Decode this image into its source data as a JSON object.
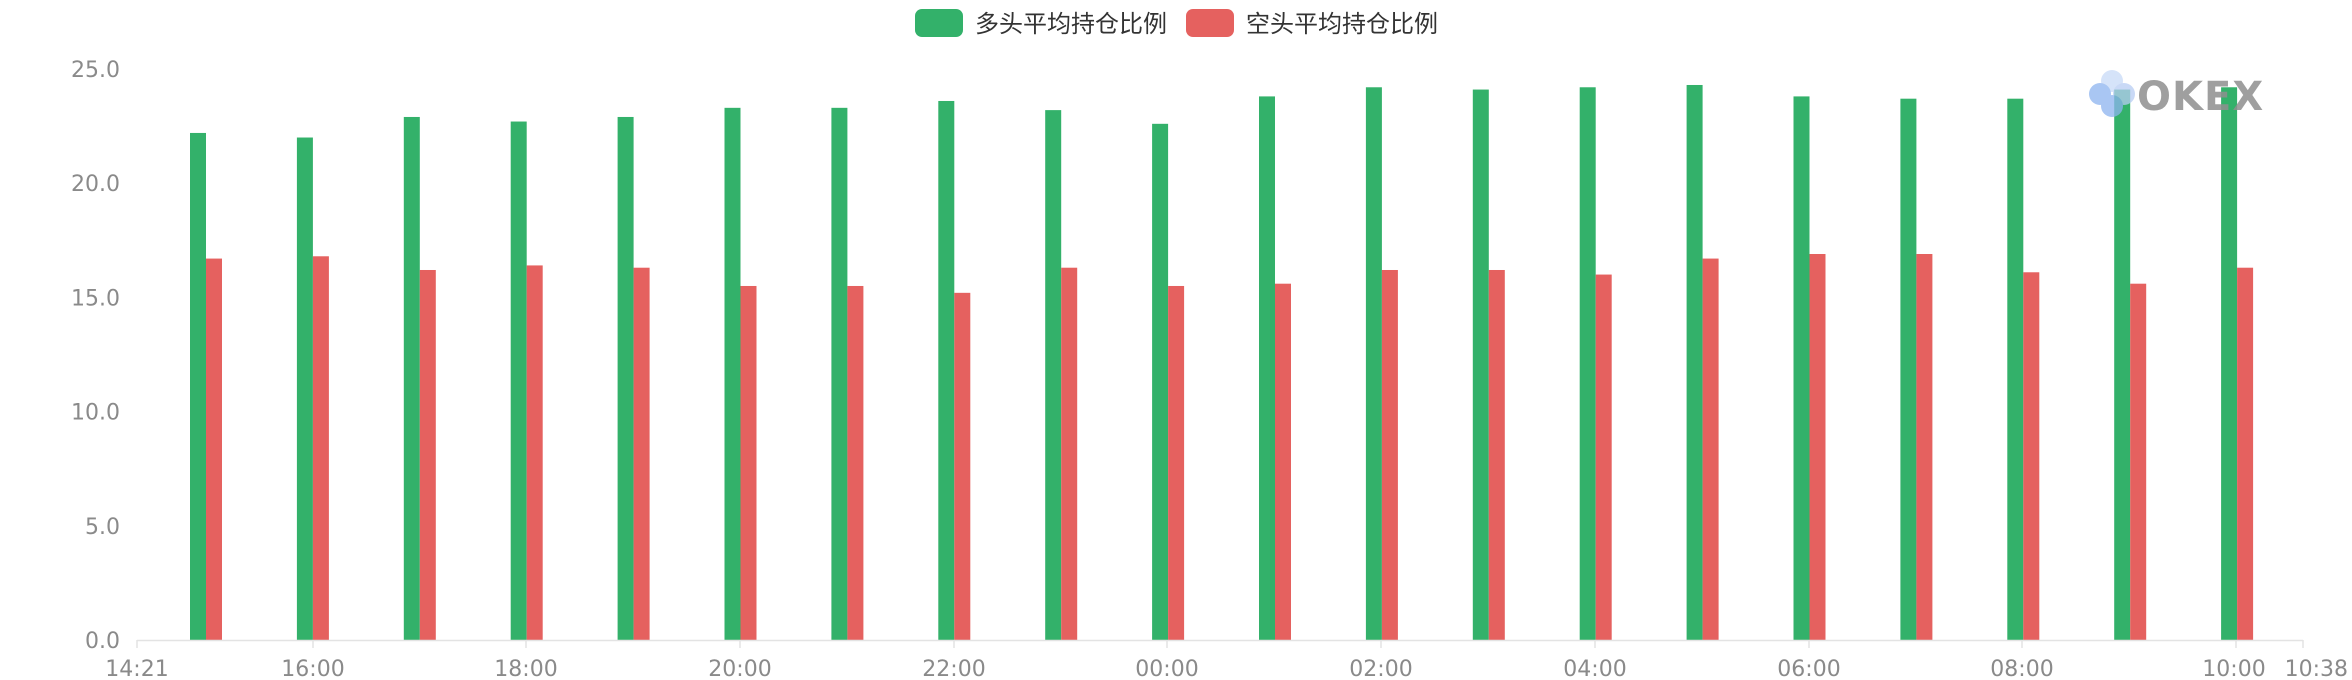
{
  "chart_data": {
    "type": "bar",
    "title": "",
    "xlabel": "",
    "ylabel": "",
    "ylim": [
      0,
      25
    ],
    "yticks": [
      "0.0",
      "5.0",
      "10.0",
      "15.0",
      "20.0",
      "25.0"
    ],
    "grid": false,
    "legend_position": "top-center",
    "x_range": [
      "14:21",
      "10:38"
    ],
    "x_tick_labels": [
      "14:21",
      "16:00",
      "18:00",
      "20:00",
      "22:00",
      "00:00",
      "02:00",
      "04:00",
      "06:00",
      "08:00",
      "10:00",
      "10:38"
    ],
    "categories": [
      "15:00",
      "16:00",
      "17:00",
      "18:00",
      "19:00",
      "20:00",
      "21:00",
      "22:00",
      "23:00",
      "00:00",
      "01:00",
      "02:00",
      "03:00",
      "04:00",
      "05:00",
      "06:00",
      "07:00",
      "08:00",
      "09:00",
      "10:00"
    ],
    "series": [
      {
        "name": "多头平均持仓比例",
        "color": "#33b16a",
        "values": [
          22.2,
          22.0,
          22.9,
          22.7,
          22.9,
          23.3,
          23.3,
          23.6,
          23.2,
          22.6,
          23.8,
          24.2,
          24.1,
          24.2,
          24.3,
          23.8,
          23.7,
          23.7,
          24.1,
          24.2
        ]
      },
      {
        "name": "空头平均持仓比例",
        "color": "#e5615f",
        "values": [
          16.7,
          16.8,
          16.2,
          16.4,
          16.3,
          15.5,
          15.5,
          15.2,
          16.3,
          15.5,
          15.6,
          16.2,
          16.2,
          16.0,
          16.7,
          16.9,
          16.9,
          16.1,
          15.6,
          16.3
        ]
      }
    ]
  },
  "watermark": {
    "text": "OKEX",
    "icon": "okex-logo-icon"
  }
}
